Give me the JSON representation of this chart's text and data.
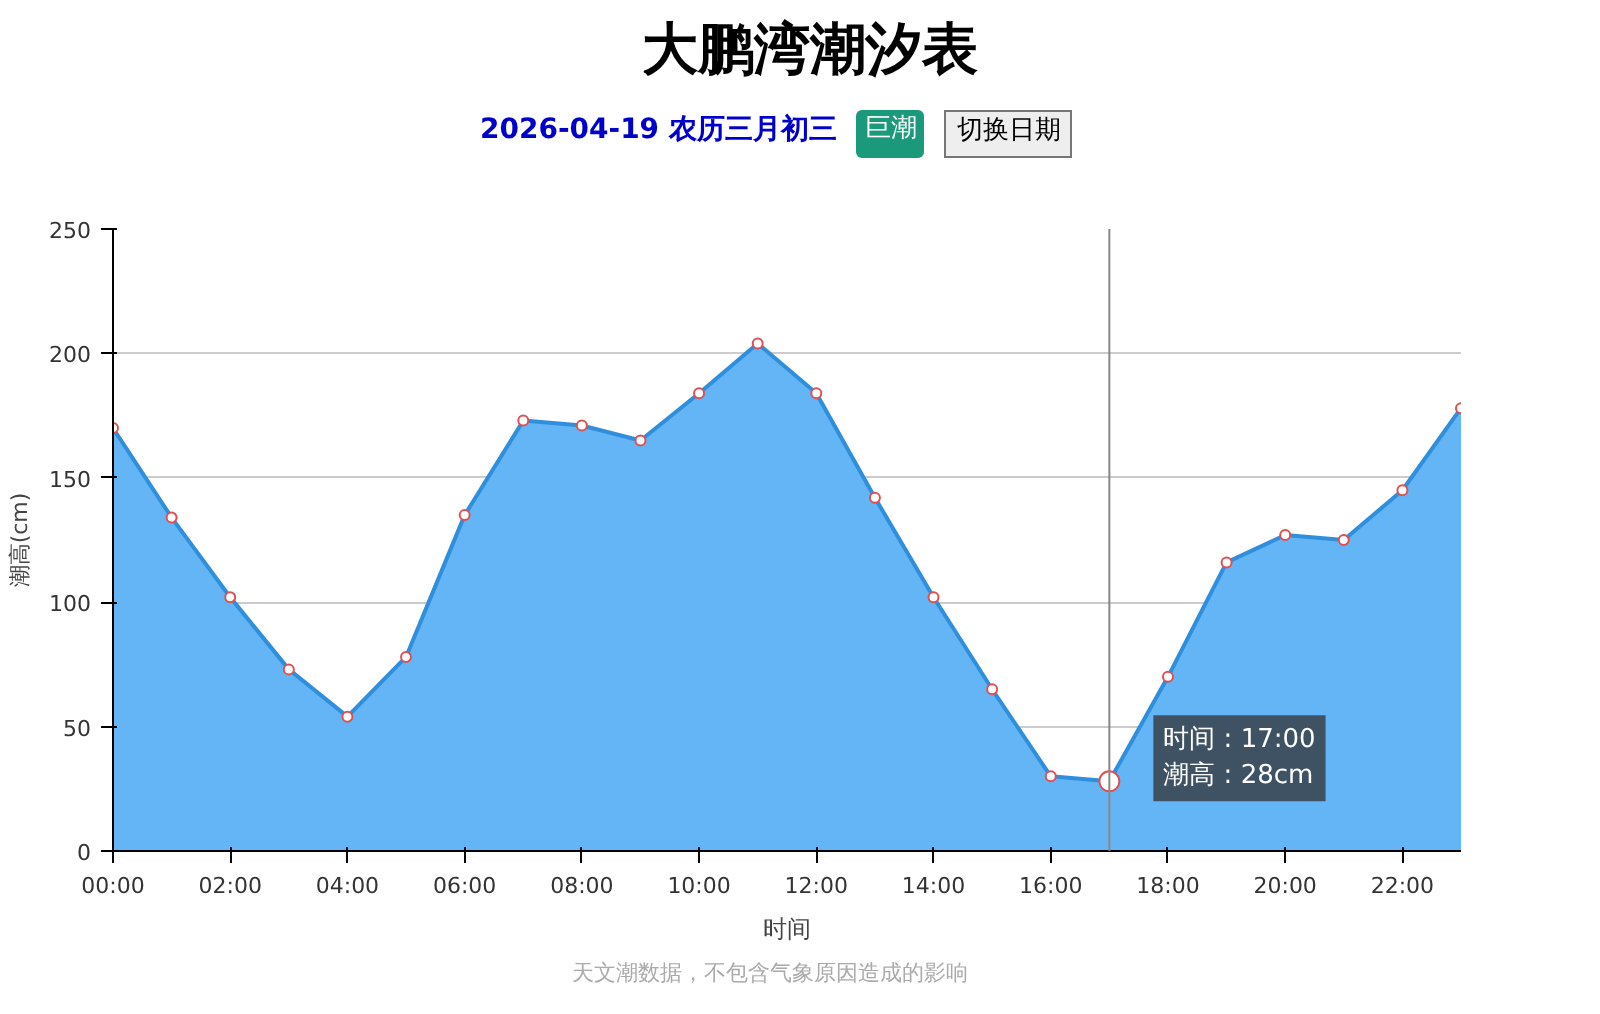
{
  "chart_data": {
    "type": "area",
    "title": "大鹏湾潮汐表",
    "subtitle": "2026-04-19 农历三月初三",
    "ylabel": "潮高(cm)",
    "xlabel": "时间",
    "x": [
      0,
      1,
      2,
      3,
      4,
      5,
      6,
      7,
      8,
      9,
      10,
      11,
      12,
      13,
      14,
      15,
      16,
      17,
      18,
      19,
      20,
      21,
      22,
      23
    ],
    "series": [
      {
        "color": "#64b5f6",
        "values": [
          170,
          134,
          102,
          73,
          54,
          78,
          135,
          173,
          171,
          165,
          184,
          204,
          184,
          142,
          102,
          65,
          30,
          28,
          70,
          116,
          127,
          125,
          145,
          178
        ]
      }
    ],
    "xlim": [
      0,
      23
    ],
    "xticks": [
      {
        "value": 0,
        "label": "00:00"
      },
      {
        "value": 2,
        "label": "02:00"
      },
      {
        "value": 4,
        "label": "04:00"
      },
      {
        "value": 6,
        "label": "06:00"
      },
      {
        "value": 8,
        "label": "08:00"
      },
      {
        "value": 10,
        "label": "10:00"
      },
      {
        "value": 12,
        "label": "12:00"
      },
      {
        "value": 14,
        "label": "14:00"
      },
      {
        "value": 16,
        "label": "16:00"
      },
      {
        "value": 18,
        "label": "18:00"
      },
      {
        "value": 20,
        "label": "20:00"
      },
      {
        "value": 22,
        "label": "22:00"
      }
    ],
    "ylim": [
      0,
      250
    ],
    "yticks": [
      0,
      50,
      100,
      150,
      200,
      250
    ],
    "grid": "y",
    "marker": "circle",
    "line_style": "solid",
    "ref_lines": [
      {
        "axis": "x",
        "value": 17,
        "color": "#888888"
      }
    ],
    "annotations": [
      "巨潮",
      "切换日期",
      {
        "text": "时间 : 17:00\n潮高 : 28cm",
        "x": 17,
        "y": 28
      },
      "天文潮数据，不包含气象原因造成的影响"
    ]
  }
}
